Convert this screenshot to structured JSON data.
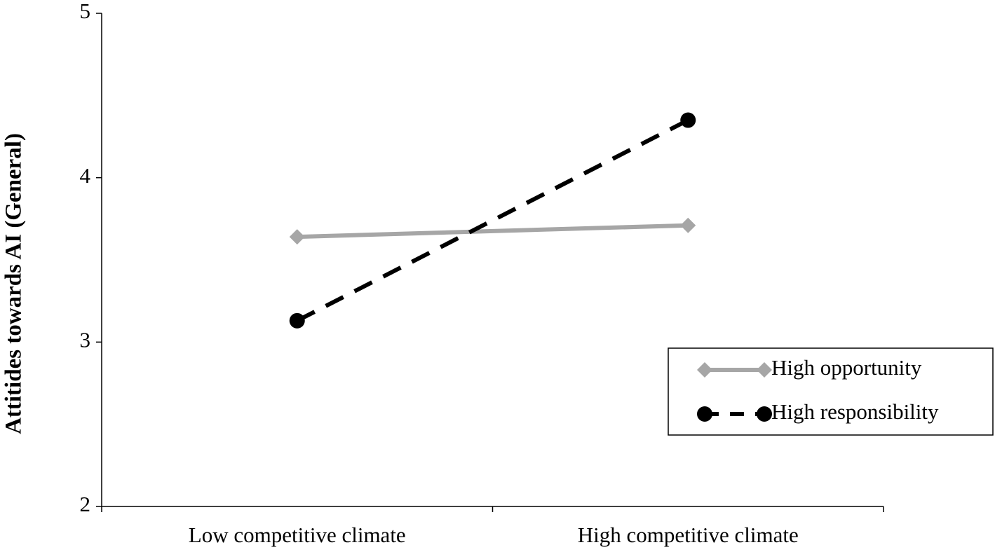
{
  "chart_data": {
    "type": "line",
    "y_label": "Attitides towards AI (General)",
    "categories": [
      "Low competitive climate",
      "High competitive climate"
    ],
    "series": [
      {
        "name": "High opportunity",
        "color": "#a6a6a6",
        "marker": "diamond",
        "linestyle": "solid",
        "values": [
          3.64,
          3.71
        ]
      },
      {
        "name": "High responsibility",
        "color": "#000000",
        "marker": "circle",
        "linestyle": "dashed",
        "values": [
          3.13,
          4.35
        ]
      }
    ],
    "ylim": [
      2,
      5
    ],
    "yticks": [
      2,
      3,
      4,
      5
    ],
    "grid": false,
    "legend": "lower right"
  }
}
